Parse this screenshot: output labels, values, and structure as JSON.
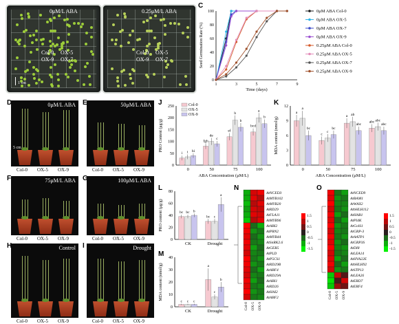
{
  "panels": {
    "A": {
      "label": "A",
      "title": "0μM/L ABA",
      "genotypes": [
        "Col-0",
        "OX-5",
        "OX-9",
        "OX-7"
      ],
      "scale": "1 cm"
    },
    "B": {
      "label": "B",
      "title": "0.25μM/L ABA",
      "genotypes": [
        "Col-0",
        "OX-5",
        "OX-9",
        "OX-7"
      ]
    },
    "D": {
      "label": "D",
      "title": "0μM/L ABA",
      "scale": "5 cm"
    },
    "E": {
      "label": "E",
      "title": "50μM/L ABA"
    },
    "F": {
      "label": "F",
      "title": "75μM/L ABA"
    },
    "G": {
      "label": "G",
      "title": "100μM/L ABA"
    },
    "H": {
      "label": "H",
      "title": "Control"
    },
    "I": {
      "label": "I",
      "title": "Drought"
    },
    "photo_xlabels": [
      "Col-0",
      "OX-5",
      "OX-9"
    ]
  },
  "chart_data": [
    {
      "panel": "C",
      "type": "line",
      "xlabel": "Time (days)",
      "ylabel": "Seed Germination Rate (%)",
      "xlim": [
        1,
        9
      ],
      "ylim": [
        0,
        100
      ],
      "xticks": [
        1,
        3,
        5,
        7,
        9
      ],
      "yticks": [
        0,
        20,
        40,
        60,
        80,
        100
      ],
      "series": [
        {
          "name": "0μM ABA Col-0",
          "color": "#1a1a1a",
          "x": [
            1,
            2,
            2.5,
            3,
            5,
            7
          ],
          "y": [
            0,
            60,
            100,
            100,
            100,
            100
          ]
        },
        {
          "name": "0μM ABA OX-5",
          "color": "#2bb3e8",
          "x": [
            1,
            2,
            2.5,
            3,
            5,
            7
          ],
          "y": [
            0,
            70,
            100,
            100,
            100,
            100
          ]
        },
        {
          "name": "0μM ABA OX-7",
          "color": "#3a49c9",
          "x": [
            1,
            2,
            2.5,
            3,
            5,
            7
          ],
          "y": [
            0,
            55,
            95,
            100,
            100,
            100
          ]
        },
        {
          "name": "0μM ABA OX-9",
          "color": "#9b4fd0",
          "x": [
            1,
            2,
            2.5,
            3,
            5,
            7
          ],
          "y": [
            0,
            50,
            92,
            100,
            100,
            100
          ]
        },
        {
          "name": "0.25μM ABA Col-0",
          "color": "#d45a2a",
          "x": [
            1,
            2,
            3,
            4,
            5,
            7,
            8
          ],
          "y": [
            0,
            15,
            55,
            88,
            100,
            100,
            100
          ]
        },
        {
          "name": "0.25μM ABA OX-5",
          "color": "#e38bb8",
          "x": [
            1,
            2,
            3,
            4,
            5,
            7,
            8
          ],
          "y": [
            0,
            20,
            58,
            90,
            100,
            100,
            100
          ]
        },
        {
          "name": "0.25μM ABA OX-7",
          "color": "#555555",
          "x": [
            1,
            2,
            3,
            4,
            5,
            6,
            7,
            8
          ],
          "y": [
            0,
            5,
            18,
            35,
            62,
            85,
            100,
            100
          ]
        },
        {
          "name": "0.25μM ABA OX-9",
          "color": "#a0522d",
          "x": [
            1,
            2,
            3,
            4,
            5,
            6,
            7,
            8
          ],
          "y": [
            0,
            8,
            25,
            45,
            70,
            90,
            100,
            100
          ]
        }
      ]
    },
    {
      "panel": "J",
      "type": "bar",
      "xlabel": "ABA Concentration (μM/L)",
      "ylabel": "PRO Content (μg/g)",
      "categories": [
        "0",
        "50",
        "75",
        "100"
      ],
      "ylim": [
        0,
        250
      ],
      "yticks": [
        0,
        50,
        100,
        150,
        200,
        250
      ],
      "series": [
        {
          "name": "Col-0",
          "color": "#f6c9d0",
          "values": [
            30,
            80,
            120,
            140
          ],
          "err": [
            10,
            12,
            15,
            15
          ],
          "letters": [
            "i",
            "fgh",
            "ef",
            "bcd"
          ]
        },
        {
          "name": "OX-5",
          "color": "#e3e3e3",
          "values": [
            35,
            100,
            190,
            200
          ],
          "err": [
            10,
            15,
            20,
            20
          ],
          "letters": [
            "i",
            "de",
            "b",
            "a"
          ]
        },
        {
          "name": "OX-9",
          "color": "#c8c4ee",
          "values": [
            40,
            90,
            160,
            175
          ],
          "err": [
            10,
            12,
            18,
            18
          ],
          "letters": [
            "hi",
            "c",
            "b",
            "b"
          ]
        }
      ]
    },
    {
      "panel": "K",
      "type": "bar",
      "xlabel": "ABA Concentration (μM/L)",
      "ylabel": "MDA content (nmol/g)",
      "categories": [
        "0",
        "50",
        "75",
        "100"
      ],
      "ylim": [
        0,
        12
      ],
      "yticks": [
        0,
        3,
        6,
        9,
        12
      ],
      "series": [
        {
          "name": "Col-0",
          "color": "#f6c9d0",
          "values": [
            9,
            5,
            8.5,
            7.5
          ],
          "err": [
            1.2,
            0.8,
            1,
            0.8
          ],
          "letters": [
            "a",
            "c",
            "a",
            "abc"
          ]
        },
        {
          "name": "OX-5",
          "color": "#e3e3e3",
          "values": [
            9.5,
            5.5,
            8.8,
            7.8
          ],
          "err": [
            1.5,
            0.8,
            1,
            0.8
          ],
          "letters": [
            "a",
            "c",
            "ab",
            "abc"
          ]
        },
        {
          "name": "OX-9",
          "color": "#c8c4ee",
          "values": [
            6,
            6.2,
            7,
            7
          ],
          "err": [
            1,
            0.8,
            0.8,
            0.8
          ],
          "letters": [
            "bc",
            "bc",
            "abc",
            "abc"
          ]
        }
      ]
    },
    {
      "panel": "L",
      "type": "bar",
      "xlabel": "",
      "ylabel": "PRO content (μg/g)",
      "categories": [
        "CK",
        "Drought"
      ],
      "ylim": [
        0,
        80
      ],
      "yticks": [
        0,
        20,
        40,
        60,
        80
      ],
      "series": [
        {
          "name": "Col-0",
          "color": "#f6c9d0",
          "values": [
            38,
            30
          ],
          "err": [
            3,
            4
          ],
          "letters": [
            "bc",
            "bc"
          ]
        },
        {
          "name": "OX-5",
          "color": "#e3e3e3",
          "values": [
            38,
            30
          ],
          "err": [
            3,
            4
          ],
          "letters": [
            "bc",
            "c"
          ]
        },
        {
          "name": "OX-9",
          "color": "#c8c4ee",
          "values": [
            40,
            58
          ],
          "err": [
            3,
            12
          ],
          "letters": [
            "b",
            "a"
          ]
        }
      ]
    },
    {
      "panel": "M",
      "type": "bar",
      "xlabel": "",
      "ylabel": "MDA content (nmol/g)",
      "categories": [
        "CK",
        "Drought"
      ],
      "ylim": [
        0,
        40
      ],
      "yticks": [
        0,
        10,
        20,
        30,
        40
      ],
      "series": [
        {
          "name": "Col-0",
          "color": "#f6c9d0",
          "values": [
            2,
            22
          ],
          "err": [
            0.5,
            9
          ],
          "letters": [
            "c",
            "a"
          ]
        },
        {
          "name": "OX-5",
          "color": "#e3e3e3",
          "values": [
            2,
            8
          ],
          "err": [
            0.5,
            2
          ],
          "letters": [
            "c",
            "c"
          ]
        },
        {
          "name": "OX-9",
          "color": "#c8c4ee",
          "values": [
            2,
            16
          ],
          "err": [
            0.5,
            4
          ],
          "letters": [
            "c",
            "b"
          ]
        }
      ]
    },
    {
      "panel": "N",
      "type": "heatmap",
      "columns": [
        "Col-0",
        "OX-5",
        "OX-9"
      ],
      "rows": [
        "AtNCED3",
        "AtMYB102",
        "AtMYB20",
        "AtRD29",
        "AtFLA11",
        "AtMYB96",
        "AtABI2",
        "AtPRN2",
        "AtMYB44",
        "AtSnRK2.6",
        "AtGER5",
        "AtPLD",
        "AtP5CS1",
        "AtRD29B",
        "AtABF4",
        "AtRD29A",
        "AtABI1",
        "AtRD26",
        "AtHAI2",
        "AtABF2"
      ],
      "values": [
        [
          -1,
          1.2,
          1.4
        ],
        [
          -1,
          1.3,
          1
        ],
        [
          -1.1,
          1,
          1.3
        ],
        [
          -0.9,
          1.2,
          1.1
        ],
        [
          -1,
          1.3,
          1.2
        ],
        [
          -1.2,
          1,
          1.3
        ],
        [
          1.5,
          -0.5,
          -1
        ],
        [
          1.4,
          -0.8,
          -0.6
        ],
        [
          1.3,
          -0.5,
          -0.8
        ],
        [
          1.4,
          -0.6,
          -0.7
        ],
        [
          1.3,
          -0.9,
          -0.5
        ],
        [
          1.2,
          -0.7,
          -0.6
        ],
        [
          1.5,
          -0.6,
          -0.8
        ],
        [
          1.4,
          -0.8,
          -0.6
        ],
        [
          1.3,
          -0.5,
          -0.9
        ],
        [
          1.2,
          -0.7,
          -0.6
        ],
        [
          1.4,
          -0.9,
          -0.5
        ],
        [
          1.3,
          -0.6,
          -0.7
        ],
        [
          1.5,
          -0.8,
          -0.6
        ],
        [
          1.2,
          -0.6,
          -0.7
        ]
      ],
      "legend": [
        "1.5",
        "1",
        "0.5",
        "0",
        "-0.5",
        "-1",
        "-1.5"
      ]
    },
    {
      "panel": "O",
      "type": "heatmap",
      "columns": [
        "Col-0",
        "OX-5",
        "OX-9"
      ],
      "rows": [
        "AtNCED9",
        "AtBAM1",
        "AtWAX2",
        "AtbHLH112",
        "AtHAB1",
        "AtPI4K",
        "AtGolS1",
        "AtGRP-3",
        "AtAATP1",
        "AtGRP3S",
        "AtDI8",
        "AtLEA14",
        "AtHVA22E",
        "AtbHLH92",
        "AtSTP13",
        "AtLEA26",
        "AtERD7",
        "AtERF4"
      ],
      "values": [
        [
          1.4,
          -0.6,
          -0.9
        ],
        [
          1.3,
          -0.8,
          -0.6
        ],
        [
          1.5,
          -0.7,
          -0.7
        ],
        [
          1.2,
          -0.6,
          -0.8
        ],
        [
          1.4,
          -0.9,
          -0.5
        ],
        [
          1.3,
          -0.5,
          -0.9
        ],
        [
          1.5,
          -0.8,
          -0.6
        ],
        [
          1.2,
          -0.7,
          -0.6
        ],
        [
          1.4,
          -0.6,
          -0.8
        ],
        [
          1.3,
          -0.8,
          -0.5
        ],
        [
          1.5,
          -0.7,
          -0.8
        ],
        [
          1.2,
          -0.6,
          -0.7
        ],
        [
          1.3,
          -0.9,
          -0.5
        ],
        [
          1.4,
          -0.5,
          -0.9
        ],
        [
          1.2,
          -0.8,
          -0.6
        ],
        [
          -1.2,
          1.1,
          0.3
        ],
        [
          -1.4,
          0.2,
          1.2
        ],
        [
          -1.2,
          0.8,
          0.5
        ]
      ],
      "legend": [
        "1.5",
        "1",
        "0.5",
        "0",
        "-0.5",
        "-1",
        "-1.5"
      ]
    }
  ]
}
